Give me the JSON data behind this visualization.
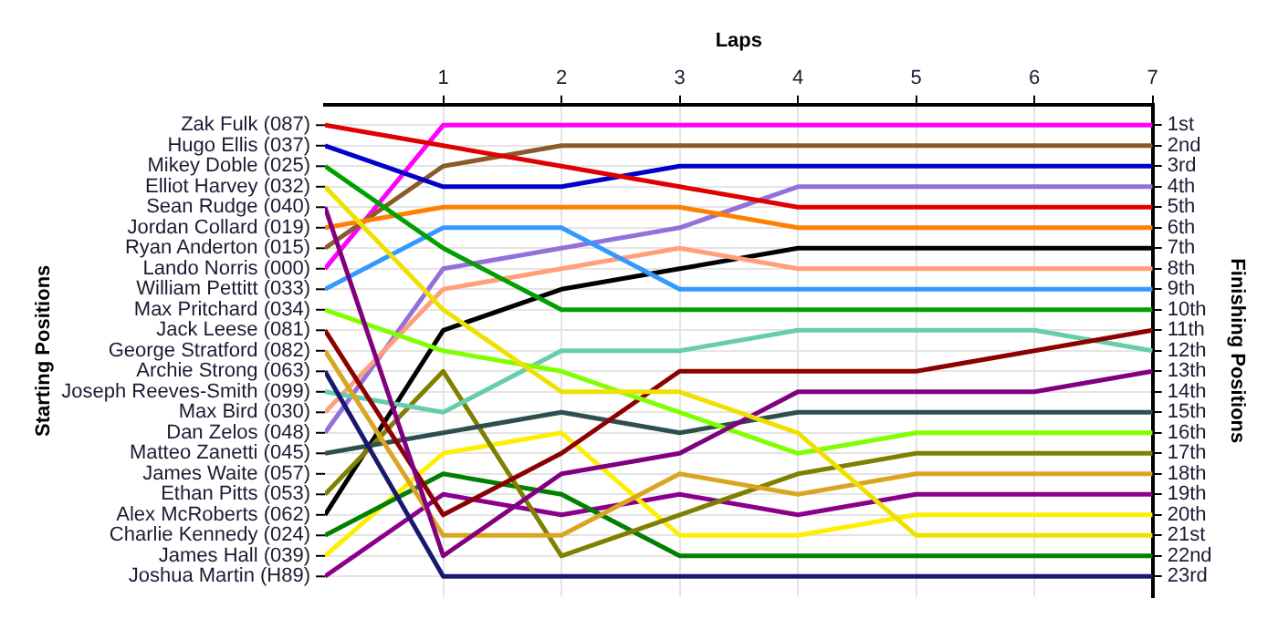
{
  "chart_data": {
    "type": "line",
    "xlabel": "Laps",
    "ylabel": "Finishing Positions",
    "x": [
      0,
      1,
      2,
      3,
      4,
      5,
      6,
      7
    ],
    "xlim": [
      0,
      7
    ],
    "xticks": [
      1,
      2,
      3,
      4,
      5,
      6,
      7
    ],
    "ylim": [
      24,
      0
    ],
    "yticks": [
      {
        "value": 1,
        "label": "1st"
      },
      {
        "value": 2,
        "label": "2nd"
      },
      {
        "value": 3,
        "label": "3rd"
      },
      {
        "value": 4,
        "label": "4th"
      },
      {
        "value": 5,
        "label": "5th"
      },
      {
        "value": 6,
        "label": "6th"
      },
      {
        "value": 7,
        "label": "7th"
      },
      {
        "value": 8,
        "label": "8th"
      },
      {
        "value": 9,
        "label": "9th"
      },
      {
        "value": 10,
        "label": "10th"
      },
      {
        "value": 11,
        "label": "11th"
      },
      {
        "value": 12,
        "label": "12th"
      },
      {
        "value": 13,
        "label": "13th"
      },
      {
        "value": 14,
        "label": "14th"
      },
      {
        "value": 15,
        "label": "15th"
      },
      {
        "value": 16,
        "label": "16th"
      },
      {
        "value": 17,
        "label": "17th"
      },
      {
        "value": 18,
        "label": "18th"
      },
      {
        "value": 19,
        "label": "19th"
      },
      {
        "value": 20,
        "label": "20th"
      },
      {
        "value": 21,
        "label": "21st"
      },
      {
        "value": 22,
        "label": "22nd"
      },
      {
        "value": 23,
        "label": "23rd"
      }
    ],
    "annotations": [
      "Starting Positions",
      "Zak Fulk (087)",
      "Hugo Ellis (037)",
      "Mikey Doble (025)",
      "Elliot Harvey (032)",
      "Sean Rudge (040)",
      "Jordan Collard (019)",
      "Ryan Anderton (015)",
      "Lando Norris (000)",
      "William Pettitt (033)",
      "Max Pritchard (034)",
      "Jack Leese (081)",
      "George Stratford (082)",
      "Archie Strong (063)",
      "Joseph Reeves-Smith (099)",
      "Max Bird (030)",
      "Dan Zelos (048)",
      "Matteo Zanetti (045)",
      "James Waite (057)",
      "Ethan Pitts (053)",
      "Alex McRoberts (062)",
      "Charlie Kennedy (024)",
      "James Hall (039)",
      "Joshua Martin (H89)"
    ],
    "grid": true,
    "legend": false,
    "marker": "none",
    "line_style": "solid",
    "series": [
      {
        "color": "#e00000",
        "values": [
          1,
          2,
          3,
          4,
          5,
          5,
          5,
          5
        ]
      },
      {
        "color": "#0000cc",
        "values": [
          2,
          4,
          4,
          3,
          3,
          3,
          3,
          3
        ]
      },
      {
        "color": "#00a000",
        "values": [
          3,
          7,
          10,
          10,
          10,
          10,
          10,
          10
        ]
      },
      {
        "color": "#f0e000",
        "values": [
          4,
          10,
          14,
          14,
          16,
          21,
          21,
          21
        ]
      },
      {
        "color": "#800080",
        "values": [
          5,
          22,
          18,
          17,
          14,
          14,
          14,
          13
        ]
      },
      {
        "color": "#ff8000",
        "values": [
          6,
          5,
          5,
          5,
          6,
          6,
          6,
          6
        ]
      },
      {
        "color": "#8b5a2b",
        "values": [
          7,
          3,
          2,
          2,
          2,
          2,
          2,
          2
        ]
      },
      {
        "color": "#ff00ff",
        "values": [
          8,
          1,
          1,
          1,
          1,
          1,
          1,
          1
        ]
      },
      {
        "color": "#3399ff",
        "values": [
          9,
          6,
          6,
          9,
          9,
          9,
          9,
          9
        ]
      },
      {
        "color": "#80ff00",
        "values": [
          10,
          12,
          13,
          15,
          17,
          16,
          16,
          16
        ]
      },
      {
        "color": "#8b0000",
        "values": [
          11,
          20,
          17,
          13,
          13,
          13,
          12,
          11
        ]
      },
      {
        "color": "#daa520",
        "values": [
          12,
          21,
          21,
          18,
          19,
          18,
          18,
          18
        ]
      },
      {
        "color": "#191970",
        "values": [
          13,
          23,
          23,
          23,
          23,
          23,
          23,
          23
        ]
      },
      {
        "color": "#66cdaa",
        "values": [
          14,
          15,
          12,
          12,
          11,
          11,
          11,
          12
        ]
      },
      {
        "color": "#ffa07a",
        "values": [
          15,
          9,
          8,
          7,
          8,
          8,
          8,
          8
        ]
      },
      {
        "color": "#9370db",
        "values": [
          16,
          8,
          7,
          6,
          4,
          4,
          4,
          4
        ]
      },
      {
        "color": "#2f4f4f",
        "values": [
          17,
          16,
          15,
          16,
          15,
          15,
          15,
          15
        ]
      },
      {
        "color": "#808000",
        "values": [
          19,
          13,
          22,
          20,
          18,
          17,
          17,
          17
        ]
      },
      {
        "color": "#000000",
        "values": [
          20,
          11,
          9,
          8,
          7,
          7,
          7,
          7
        ]
      },
      {
        "color": "#008000",
        "values": [
          21,
          18,
          19,
          22,
          22,
          22,
          22,
          22
        ]
      },
      {
        "color": "#ffee00",
        "values": [
          22,
          17,
          16,
          21,
          21,
          20,
          20,
          20
        ]
      },
      {
        "color": "#8b008b",
        "values": [
          23,
          19,
          20,
          19,
          20,
          19,
          19,
          19
        ]
      }
    ]
  }
}
